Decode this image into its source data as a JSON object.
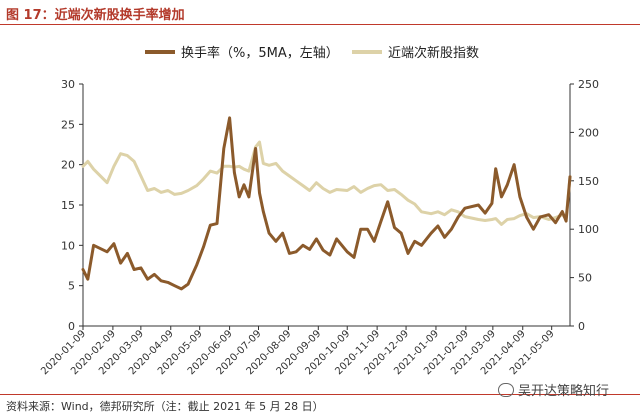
{
  "title": "图 17：近端次新股换手率增加",
  "source": "资料来源：Wind，德邦研究所（注：截止 2021 年 5 月 28 日）",
  "watermark": "吴开达策略知行",
  "colors": {
    "turnover": "#8b5a2b",
    "index": "#ddd2a8",
    "title": "#b33a2b",
    "axis": "#333333"
  },
  "chart_data": {
    "type": "line",
    "x_ticks": [
      "2020-01-09",
      "2020-02-09",
      "2020-03-09",
      "2020-04-09",
      "2020-05-09",
      "2020-06-09",
      "2020-07-09",
      "2020-08-09",
      "2020-09-09",
      "2020-10-09",
      "2020-11-09",
      "2020-12-09",
      "2021-01-09",
      "2021-02-09",
      "2021-03-09",
      "2021-04-09",
      "2021-05-09"
    ],
    "x_range": [
      "2020-01-09",
      "2021-05-28"
    ],
    "y_left": {
      "label": "",
      "range": [
        0,
        30
      ],
      "ticks": [
        0,
        5,
        10,
        15,
        20,
        25,
        30
      ]
    },
    "y_right": {
      "label": "",
      "range": [
        0,
        250
      ],
      "ticks": [
        0,
        50,
        100,
        150,
        200,
        250
      ]
    },
    "legend_position": "top-center",
    "grid": false,
    "series": [
      {
        "name": "换手率（%，5MA，左轴）",
        "axis": "left",
        "points": [
          [
            "2020-01-09",
            7.0
          ],
          [
            "2020-01-14",
            5.8
          ],
          [
            "2020-01-20",
            10.0
          ],
          [
            "2020-02-03",
            9.2
          ],
          [
            "2020-02-10",
            10.2
          ],
          [
            "2020-02-17",
            7.8
          ],
          [
            "2020-02-24",
            9.0
          ],
          [
            "2020-03-02",
            7.0
          ],
          [
            "2020-03-09",
            7.2
          ],
          [
            "2020-03-16",
            5.8
          ],
          [
            "2020-03-23",
            6.4
          ],
          [
            "2020-03-30",
            5.6
          ],
          [
            "2020-04-06",
            5.4
          ],
          [
            "2020-04-13",
            5.0
          ],
          [
            "2020-04-20",
            4.6
          ],
          [
            "2020-04-27",
            5.2
          ],
          [
            "2020-05-06",
            7.6
          ],
          [
            "2020-05-13",
            9.8
          ],
          [
            "2020-05-20",
            12.5
          ],
          [
            "2020-05-27",
            12.7
          ],
          [
            "2020-06-03",
            22.0
          ],
          [
            "2020-06-09",
            25.8
          ],
          [
            "2020-06-14",
            19.0
          ],
          [
            "2020-06-19",
            16.0
          ],
          [
            "2020-06-24",
            17.5
          ],
          [
            "2020-06-29",
            16.0
          ],
          [
            "2020-07-06",
            22.0
          ],
          [
            "2020-07-10",
            16.5
          ],
          [
            "2020-07-14",
            14.2
          ],
          [
            "2020-07-20",
            11.5
          ],
          [
            "2020-07-27",
            10.5
          ],
          [
            "2020-08-03",
            11.5
          ],
          [
            "2020-08-10",
            9.0
          ],
          [
            "2020-08-17",
            9.2
          ],
          [
            "2020-08-24",
            10.0
          ],
          [
            "2020-08-31",
            9.5
          ],
          [
            "2020-09-07",
            10.8
          ],
          [
            "2020-09-14",
            9.4
          ],
          [
            "2020-09-21",
            8.8
          ],
          [
            "2020-09-28",
            10.8
          ],
          [
            "2020-10-09",
            9.2
          ],
          [
            "2020-10-16",
            8.5
          ],
          [
            "2020-10-23",
            12.0
          ],
          [
            "2020-10-30",
            12.0
          ],
          [
            "2020-11-06",
            10.5
          ],
          [
            "2020-11-13",
            13.0
          ],
          [
            "2020-11-20",
            15.4
          ],
          [
            "2020-11-27",
            12.2
          ],
          [
            "2020-12-04",
            11.5
          ],
          [
            "2020-12-11",
            9.0
          ],
          [
            "2020-12-18",
            10.5
          ],
          [
            "2020-12-25",
            10.0
          ],
          [
            "2021-01-04",
            11.5
          ],
          [
            "2021-01-11",
            12.4
          ],
          [
            "2021-01-18",
            11.0
          ],
          [
            "2021-01-25",
            12.0
          ],
          [
            "2021-02-01",
            13.5
          ],
          [
            "2021-02-08",
            14.6
          ],
          [
            "2021-02-22",
            15.0
          ],
          [
            "2021-03-01",
            14.0
          ],
          [
            "2021-03-08",
            15.2
          ],
          [
            "2021-03-12",
            19.5
          ],
          [
            "2021-03-18",
            16.0
          ],
          [
            "2021-03-24",
            17.5
          ],
          [
            "2021-03-31",
            20.0
          ],
          [
            "2021-04-06",
            16.0
          ],
          [
            "2021-04-13",
            13.5
          ],
          [
            "2021-04-20",
            12.0
          ],
          [
            "2021-04-27",
            13.5
          ],
          [
            "2021-05-06",
            13.8
          ],
          [
            "2021-05-13",
            12.8
          ],
          [
            "2021-05-20",
            14.2
          ],
          [
            "2021-05-24",
            13.0
          ],
          [
            "2021-05-28",
            18.5
          ]
        ]
      },
      {
        "name": "近端次新股指数",
        "axis": "right",
        "points": [
          [
            "2020-01-09",
            165
          ],
          [
            "2020-01-14",
            170
          ],
          [
            "2020-01-20",
            162
          ],
          [
            "2020-02-03",
            148
          ],
          [
            "2020-02-10",
            165
          ],
          [
            "2020-02-17",
            178
          ],
          [
            "2020-02-24",
            176
          ],
          [
            "2020-03-02",
            170
          ],
          [
            "2020-03-09",
            155
          ],
          [
            "2020-03-16",
            140
          ],
          [
            "2020-03-23",
            142
          ],
          [
            "2020-03-30",
            138
          ],
          [
            "2020-04-06",
            140
          ],
          [
            "2020-04-13",
            136
          ],
          [
            "2020-04-20",
            137
          ],
          [
            "2020-04-27",
            140
          ],
          [
            "2020-05-06",
            145
          ],
          [
            "2020-05-13",
            152
          ],
          [
            "2020-05-20",
            160
          ],
          [
            "2020-05-27",
            158
          ],
          [
            "2020-06-03",
            165
          ],
          [
            "2020-06-09",
            165
          ],
          [
            "2020-06-14",
            164
          ],
          [
            "2020-06-19",
            165
          ],
          [
            "2020-06-24",
            162
          ],
          [
            "2020-06-29",
            160
          ],
          [
            "2020-07-06",
            185
          ],
          [
            "2020-07-10",
            190
          ],
          [
            "2020-07-14",
            168
          ],
          [
            "2020-07-20",
            166
          ],
          [
            "2020-07-27",
            168
          ],
          [
            "2020-08-03",
            160
          ],
          [
            "2020-08-10",
            155
          ],
          [
            "2020-08-17",
            150
          ],
          [
            "2020-08-24",
            145
          ],
          [
            "2020-08-31",
            140
          ],
          [
            "2020-09-07",
            148
          ],
          [
            "2020-09-14",
            142
          ],
          [
            "2020-09-21",
            138
          ],
          [
            "2020-09-28",
            141
          ],
          [
            "2020-10-09",
            140
          ],
          [
            "2020-10-16",
            144
          ],
          [
            "2020-10-23",
            138
          ],
          [
            "2020-10-30",
            142
          ],
          [
            "2020-11-06",
            145
          ],
          [
            "2020-11-13",
            146
          ],
          [
            "2020-11-20",
            140
          ],
          [
            "2020-11-27",
            141
          ],
          [
            "2020-12-04",
            136
          ],
          [
            "2020-12-11",
            130
          ],
          [
            "2020-12-18",
            126
          ],
          [
            "2020-12-25",
            118
          ],
          [
            "2021-01-04",
            116
          ],
          [
            "2021-01-11",
            118
          ],
          [
            "2021-01-18",
            115
          ],
          [
            "2021-01-25",
            120
          ],
          [
            "2021-02-01",
            118
          ],
          [
            "2021-02-08",
            113
          ],
          [
            "2021-02-22",
            110
          ],
          [
            "2021-03-01",
            109
          ],
          [
            "2021-03-08",
            110
          ],
          [
            "2021-03-12",
            111
          ],
          [
            "2021-03-18",
            105
          ],
          [
            "2021-03-24",
            110
          ],
          [
            "2021-03-31",
            111
          ],
          [
            "2021-04-06",
            114
          ],
          [
            "2021-04-13",
            116
          ],
          [
            "2021-04-20",
            112
          ],
          [
            "2021-04-27",
            113
          ],
          [
            "2021-05-06",
            110
          ],
          [
            "2021-05-13",
            112
          ],
          [
            "2021-05-20",
            115
          ],
          [
            "2021-05-24",
            111
          ],
          [
            "2021-05-28",
            154
          ]
        ]
      }
    ]
  }
}
